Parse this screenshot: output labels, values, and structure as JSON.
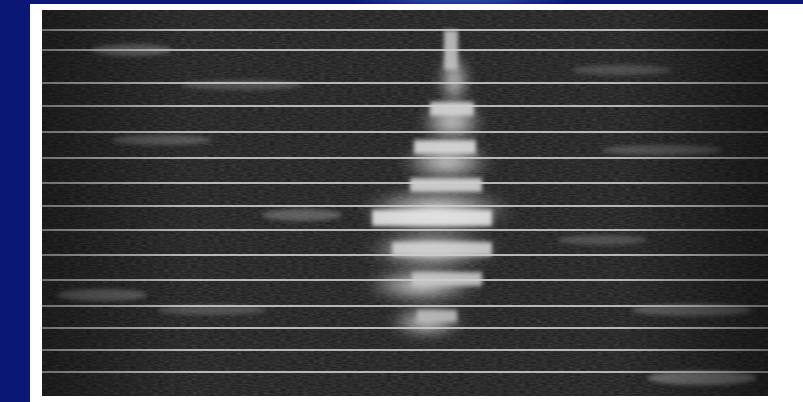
{
  "slide": {
    "background_color": "#0a1775",
    "matte_color": "#ffffff"
  },
  "image": {
    "kind": "grayscale-ladder-gel-photo",
    "band_color": "#f2f2f2",
    "lane_color": "#151515"
  }
}
